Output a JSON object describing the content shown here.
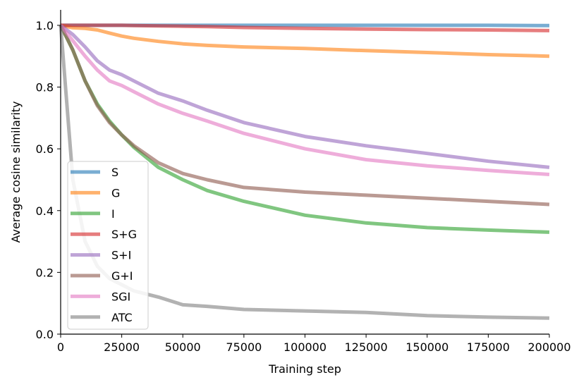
{
  "chart_data": {
    "type": "line",
    "title": "",
    "xlabel": "Training step",
    "ylabel": "Average cosine similarity",
    "xlim": [
      0,
      200000
    ],
    "ylim": [
      0.0,
      1.05
    ],
    "xticks": [
      0,
      25000,
      50000,
      75000,
      100000,
      125000,
      150000,
      175000,
      200000
    ],
    "xtick_labels": [
      "0",
      "25000",
      "50000",
      "75000",
      "100000",
      "125000",
      "150000",
      "175000",
      "200000"
    ],
    "yticks": [
      0.0,
      0.2,
      0.4,
      0.6,
      0.8,
      1.0
    ],
    "ytick_labels": [
      "0.0",
      "0.2",
      "0.4",
      "0.6",
      "0.8",
      "1.0"
    ],
    "grid": false,
    "legend_position": "lower-left",
    "x": [
      0,
      5000,
      10000,
      15000,
      20000,
      25000,
      30000,
      40000,
      50000,
      60000,
      75000,
      100000,
      125000,
      150000,
      175000,
      200000
    ],
    "series": [
      {
        "name": "S",
        "color": "#1f77b4",
        "values": [
          1.0,
          1.0,
          1.0,
          1.0,
          1.0,
          1.0,
          1.0,
          1.0,
          1.0,
          1.0,
          1.0,
          1.0,
          1.0,
          1.0,
          1.0,
          0.999
        ]
      },
      {
        "name": "G",
        "color": "#ff7f0e",
        "values": [
          1.0,
          0.992,
          0.99,
          0.985,
          0.975,
          0.965,
          0.958,
          0.948,
          0.94,
          0.935,
          0.93,
          0.925,
          0.918,
          0.912,
          0.905,
          0.9
        ]
      },
      {
        "name": "I",
        "color": "#2ca02c",
        "values": [
          1.0,
          0.92,
          0.82,
          0.745,
          0.69,
          0.645,
          0.605,
          0.54,
          0.5,
          0.465,
          0.43,
          0.385,
          0.36,
          0.345,
          0.337,
          0.33
        ]
      },
      {
        "name": "S+G",
        "color": "#d62728",
        "values": [
          1.0,
          1.0,
          1.0,
          1.0,
          1.0,
          1.0,
          0.999,
          0.998,
          0.997,
          0.996,
          0.993,
          0.99,
          0.988,
          0.986,
          0.985,
          0.983
        ]
      },
      {
        "name": "S+I",
        "color": "#9467bd",
        "values": [
          1.0,
          0.97,
          0.93,
          0.885,
          0.855,
          0.84,
          0.82,
          0.78,
          0.755,
          0.725,
          0.685,
          0.64,
          0.61,
          0.585,
          0.56,
          0.54
        ]
      },
      {
        "name": "G+I",
        "color": "#8c564b",
        "values": [
          1.0,
          0.92,
          0.82,
          0.74,
          0.685,
          0.645,
          0.61,
          0.555,
          0.52,
          0.5,
          0.475,
          0.46,
          0.45,
          0.44,
          0.43,
          0.42
        ]
      },
      {
        "name": "SGI",
        "color": "#e377c2",
        "values": [
          1.0,
          0.95,
          0.9,
          0.855,
          0.82,
          0.805,
          0.785,
          0.745,
          0.715,
          0.69,
          0.65,
          0.6,
          0.565,
          0.545,
          0.53,
          0.517
        ]
      },
      {
        "name": "ATC",
        "color": "#7f7f7f",
        "values": [
          1.0,
          0.5,
          0.3,
          0.22,
          0.18,
          0.16,
          0.14,
          0.12,
          0.095,
          0.09,
          0.08,
          0.075,
          0.07,
          0.06,
          0.055,
          0.052
        ]
      }
    ]
  }
}
